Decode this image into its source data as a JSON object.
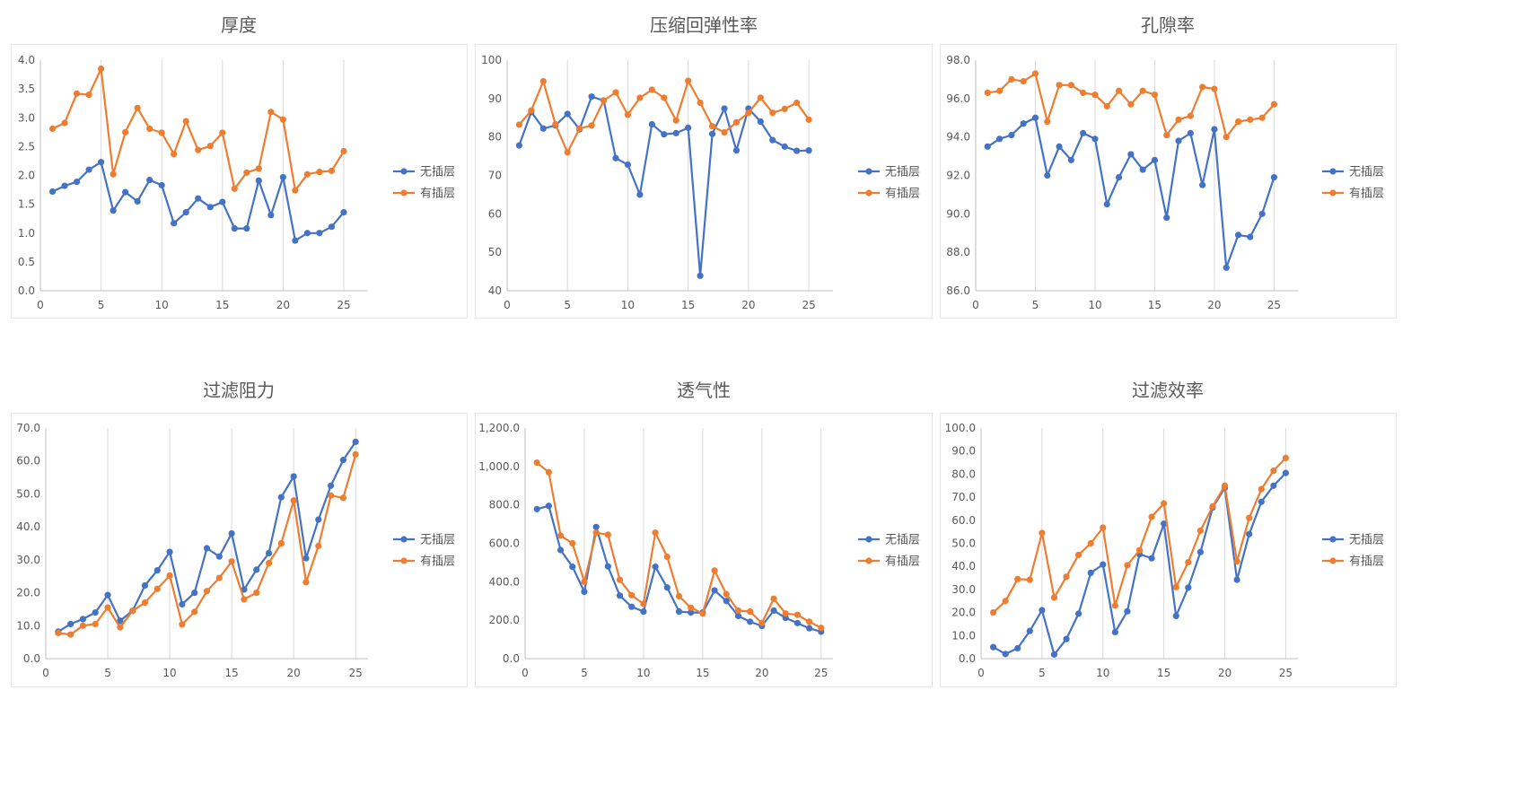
{
  "legend": [
    "无插层",
    "有插层"
  ],
  "colors": {
    "s1": "#4472C4",
    "s2": "#ED7D31",
    "grid": "#d9d9d9",
    "axis": "#bfbfbf"
  },
  "chart_data": [
    {
      "type": "line",
      "title": "厚度",
      "x": [
        1,
        2,
        3,
        4,
        5,
        6,
        7,
        8,
        9,
        10,
        11,
        12,
        13,
        14,
        15,
        16,
        17,
        18,
        19,
        20,
        21,
        22,
        23,
        24,
        25
      ],
      "xlim": [
        0,
        27
      ],
      "xticks": [
        0,
        5,
        10,
        15,
        20,
        25
      ],
      "ylim": [
        0,
        4
      ],
      "yticks": [
        0,
        0.5,
        1,
        1.5,
        2,
        2.5,
        3,
        3.5,
        4
      ],
      "ydecimals": 1,
      "grid": "vertical",
      "legend_position": "right",
      "series": [
        {
          "name": "无插层",
          "values": [
            1.72,
            1.82,
            1.89,
            2.1,
            2.23,
            1.39,
            1.71,
            1.55,
            1.92,
            1.83,
            1.17,
            1.36,
            1.6,
            1.45,
            1.54,
            1.08,
            1.08,
            1.91,
            1.31,
            1.97,
            0.87,
            1.0,
            1.0,
            1.11,
            1.36
          ]
        },
        {
          "name": "有插层",
          "values": [
            2.81,
            2.91,
            3.42,
            3.4,
            3.85,
            2.02,
            2.75,
            3.17,
            2.81,
            2.74,
            2.37,
            2.94,
            2.44,
            2.51,
            2.74,
            1.77,
            2.05,
            2.12,
            3.1,
            2.97,
            1.74,
            2.02,
            2.06,
            2.08,
            2.42
          ]
        }
      ]
    },
    {
      "type": "line",
      "title": "压缩回弹性率",
      "x": [
        1,
        2,
        3,
        4,
        5,
        6,
        7,
        8,
        9,
        10,
        11,
        12,
        13,
        14,
        15,
        16,
        17,
        18,
        19,
        20,
        21,
        22,
        23,
        24,
        25
      ],
      "xlim": [
        0,
        27
      ],
      "xticks": [
        0,
        5,
        10,
        15,
        20,
        25
      ],
      "ylim": [
        40,
        100
      ],
      "yticks": [
        40,
        50,
        60,
        70,
        80,
        90,
        100
      ],
      "ydecimals": 0,
      "grid": "vertical",
      "legend_position": "right",
      "series": [
        {
          "name": "无插层",
          "values": [
            77.8,
            86.5,
            82.2,
            83.0,
            86.0,
            82.0,
            90.5,
            89.5,
            74.5,
            72.8,
            65.0,
            83.3,
            80.7,
            81.0,
            82.4,
            43.9,
            80.8,
            87.4,
            76.5,
            87.4,
            84.0,
            79.2,
            77.5,
            76.4,
            76.5
          ]
        },
        {
          "name": "有插层",
          "values": [
            83.2,
            86.9,
            94.5,
            83.3,
            76.0,
            82.2,
            83.0,
            89.5,
            91.6,
            85.8,
            90.2,
            92.3,
            90.2,
            84.3,
            94.6,
            88.9,
            82.8,
            81.2,
            83.8,
            86.3,
            90.2,
            86.3,
            87.3,
            88.9,
            84.5
          ]
        }
      ]
    },
    {
      "type": "line",
      "title": "孔隙率",
      "x": [
        1,
        2,
        3,
        4,
        5,
        6,
        7,
        8,
        9,
        10,
        11,
        12,
        13,
        14,
        15,
        16,
        17,
        18,
        19,
        20,
        21,
        22,
        23,
        24,
        25
      ],
      "xlim": [
        0,
        27
      ],
      "xticks": [
        0,
        5,
        10,
        15,
        20,
        25
      ],
      "ylim": [
        86,
        98
      ],
      "yticks": [
        86,
        88,
        90,
        92,
        94,
        96,
        98
      ],
      "ydecimals": 1,
      "grid": "vertical",
      "legend_position": "right",
      "series": [
        {
          "name": "无插层",
          "values": [
            93.5,
            93.9,
            94.1,
            94.7,
            95.0,
            92.0,
            93.5,
            92.8,
            94.2,
            93.9,
            90.5,
            91.9,
            93.1,
            92.3,
            92.8,
            89.8,
            93.8,
            94.2,
            91.5,
            94.4,
            87.2,
            88.9,
            88.8,
            90.0,
            91.9
          ]
        },
        {
          "name": "有插层",
          "values": [
            96.3,
            96.4,
            97.0,
            96.9,
            97.3,
            94.8,
            96.7,
            96.7,
            96.3,
            96.2,
            95.6,
            96.4,
            95.7,
            96.4,
            96.2,
            94.1,
            94.9,
            95.1,
            96.6,
            96.5,
            94.0,
            94.8,
            94.9,
            95.0,
            95.7
          ]
        }
      ]
    },
    {
      "type": "line",
      "title": "过滤阻力",
      "x": [
        1,
        2,
        3,
        4,
        5,
        6,
        7,
        8,
        9,
        10,
        11,
        12,
        13,
        14,
        15,
        16,
        17,
        18,
        19,
        20,
        21,
        22,
        23,
        24,
        25
      ],
      "xlim": [
        0,
        26
      ],
      "xticks": [
        0,
        5,
        10,
        15,
        20,
        25
      ],
      "ylim": [
        0,
        70
      ],
      "yticks": [
        0,
        10,
        20,
        30,
        40,
        50,
        60,
        70
      ],
      "ydecimals": 1,
      "grid": "vertical",
      "legend_position": "right",
      "series": [
        {
          "name": "无插层",
          "values": [
            8.2,
            10.5,
            12.0,
            14.0,
            19.3,
            11.5,
            14.5,
            22.2,
            26.8,
            32.4,
            16.5,
            20.0,
            33.5,
            31.0,
            38.0,
            21.0,
            27.0,
            32.0,
            49.0,
            55.3,
            30.5,
            42.2,
            52.5,
            60.3,
            65.8
          ]
        },
        {
          "name": "有插层",
          "values": [
            7.8,
            7.3,
            10.0,
            10.5,
            15.5,
            9.5,
            14.5,
            17.0,
            21.2,
            25.2,
            10.4,
            14.2,
            20.5,
            24.5,
            29.5,
            18.0,
            20.0,
            29.0,
            35.0,
            48.0,
            23.2,
            34.2,
            49.5,
            48.8,
            62.0
          ]
        }
      ]
    },
    {
      "type": "line",
      "title": "透气性",
      "x": [
        1,
        2,
        3,
        4,
        5,
        6,
        7,
        8,
        9,
        10,
        11,
        12,
        13,
        14,
        15,
        16,
        17,
        18,
        19,
        20,
        21,
        22,
        23,
        24,
        25
      ],
      "xlim": [
        0,
        26
      ],
      "xticks": [
        0,
        5,
        10,
        15,
        20,
        25
      ],
      "ylim": [
        0,
        1200
      ],
      "yticks": [
        0,
        200,
        400,
        600,
        800,
        1000,
        1200
      ],
      "ydecimals": 1,
      "thousands": true,
      "grid": "vertical",
      "legend_position": "right",
      "series": [
        {
          "name": "无插层",
          "values": [
            778,
            795,
            565,
            478,
            348,
            685,
            480,
            328,
            270,
            245,
            478,
            370,
            245,
            240,
            240,
            355,
            300,
            222,
            192,
            170,
            250,
            212,
            185,
            158,
            140
          ]
        },
        {
          "name": "有插层",
          "values": [
            1020,
            970,
            640,
            600,
            400,
            655,
            645,
            410,
            330,
            285,
            655,
            530,
            325,
            265,
            235,
            458,
            335,
            250,
            245,
            185,
            312,
            235,
            228,
            192,
            160
          ]
        }
      ]
    },
    {
      "type": "line",
      "title": "过滤效率",
      "x": [
        1,
        2,
        3,
        4,
        5,
        6,
        7,
        8,
        9,
        10,
        11,
        12,
        13,
        14,
        15,
        16,
        17,
        18,
        19,
        20,
        21,
        22,
        23,
        24,
        25
      ],
      "xlim": [
        0,
        26
      ],
      "xticks": [
        0,
        5,
        10,
        15,
        20,
        25
      ],
      "ylim": [
        0,
        100
      ],
      "yticks": [
        0,
        10,
        20,
        30,
        40,
        50,
        60,
        70,
        80,
        90,
        100
      ],
      "ydecimals": 1,
      "grid": "vertical",
      "legend_position": "right",
      "series": [
        {
          "name": "无插层",
          "values": [
            5.0,
            2.0,
            4.5,
            12.0,
            21.0,
            1.8,
            8.5,
            19.5,
            37.2,
            40.8,
            11.5,
            20.5,
            45.3,
            43.5,
            58.5,
            18.5,
            30.8,
            46.2,
            65.5,
            74.0,
            34.2,
            54.0,
            68.0,
            75.0,
            80.5
          ]
        },
        {
          "name": "有插层",
          "values": [
            20.0,
            25.0,
            34.5,
            34.2,
            54.5,
            26.5,
            35.5,
            45.0,
            50.0,
            56.8,
            23.0,
            40.5,
            47.0,
            61.5,
            67.3,
            31.0,
            41.8,
            55.5,
            66.0,
            75.0,
            42.2,
            61.0,
            73.5,
            81.5,
            87.0
          ]
        }
      ]
    }
  ]
}
